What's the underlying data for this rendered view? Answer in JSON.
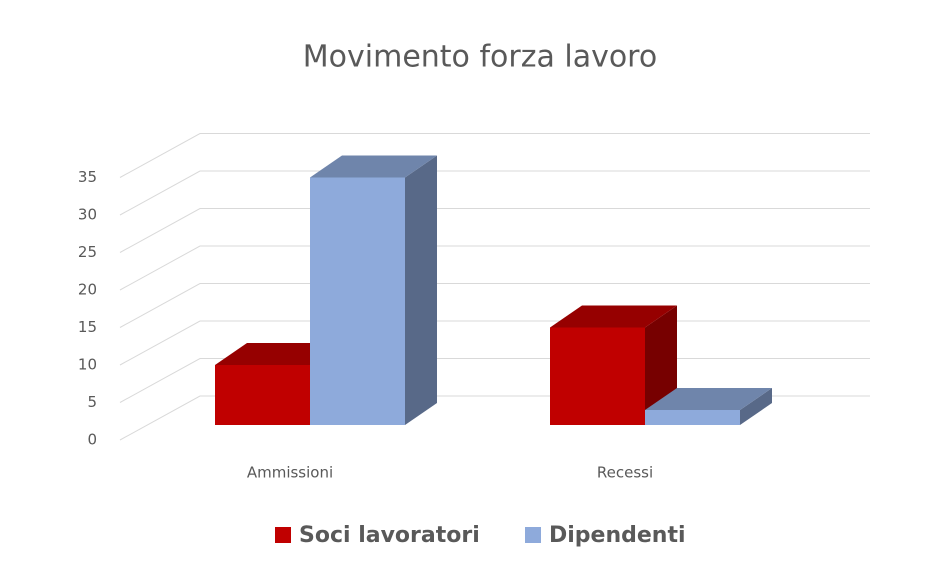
{
  "chart_data": {
    "type": "bar3d",
    "title": "Movimento forza lavoro",
    "categories": [
      "Ammissioni",
      "Recessi"
    ],
    "series": [
      {
        "name": "Soci lavoratori",
        "color": "#c00000",
        "values": [
          8,
          13
        ]
      },
      {
        "name": "Dipendenti",
        "color": "#8eaadb",
        "values": [
          33,
          2
        ]
      }
    ],
    "ylim": [
      0,
      35
    ],
    "yticks": [
      0,
      5,
      10,
      15,
      20,
      25,
      30,
      35
    ],
    "grid": true,
    "legend": "bottom"
  }
}
